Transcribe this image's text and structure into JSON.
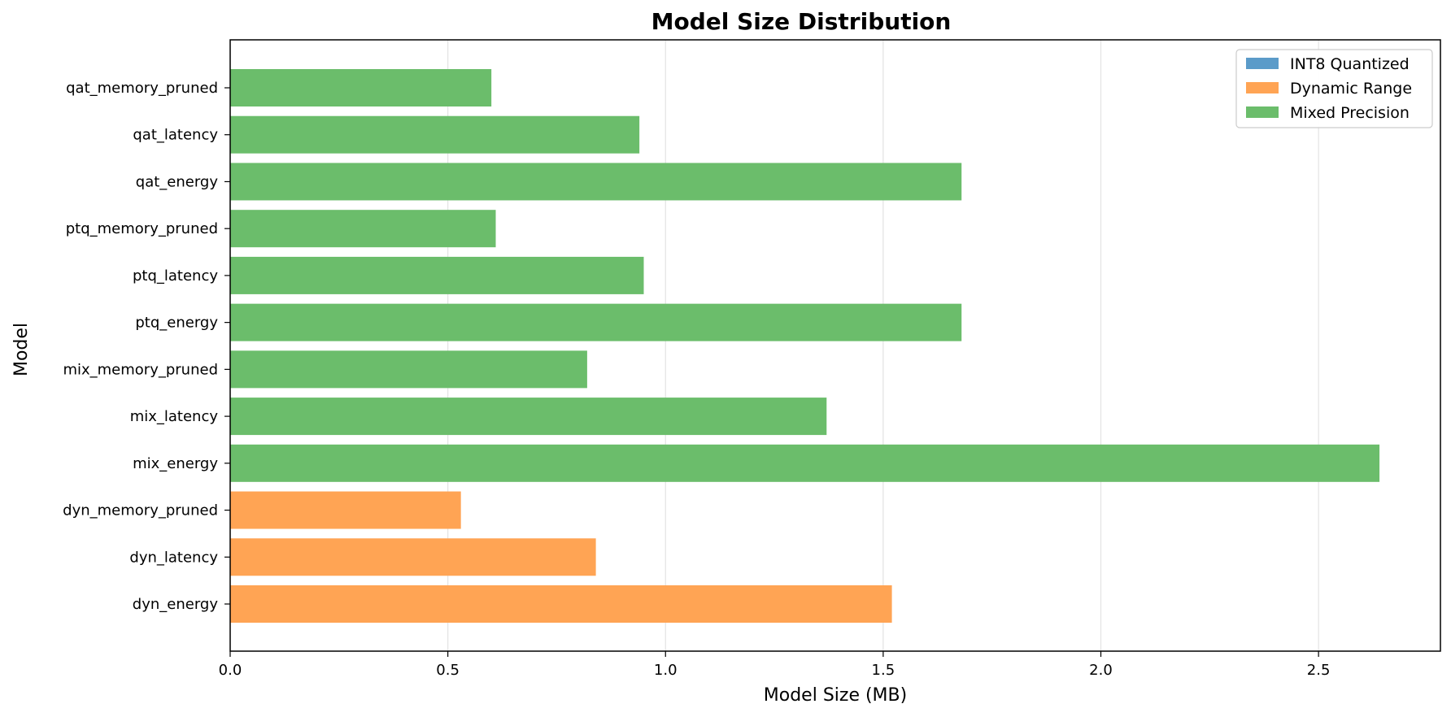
{
  "colors": {
    "int8": "#5b9bc9",
    "dynamic": "#ffa454",
    "mixed": "#6bbd6b",
    "grid": "#e3e3e3",
    "axis": "#000000"
  },
  "chart_data": {
    "type": "bar",
    "orientation": "horizontal",
    "title": "Model Size Distribution",
    "xlabel": "Model Size (MB)",
    "ylabel": "Model",
    "xlim": [
      0,
      2.78
    ],
    "xticks": [
      0.0,
      0.5,
      1.0,
      1.5,
      2.0,
      2.5
    ],
    "xtick_labels": [
      "0.0",
      "0.5",
      "1.0",
      "1.5",
      "2.0",
      "2.5"
    ],
    "grid": "x",
    "legend_position": "top-right",
    "legend": [
      {
        "label": "INT8 Quantized",
        "color_key": "int8"
      },
      {
        "label": "Dynamic Range",
        "color_key": "dynamic"
      },
      {
        "label": "Mixed Precision",
        "color_key": "mixed"
      }
    ],
    "categories": [
      "dyn_energy",
      "dyn_latency",
      "dyn_memory_pruned",
      "mix_energy",
      "mix_latency",
      "mix_memory_pruned",
      "ptq_energy",
      "ptq_latency",
      "ptq_memory_pruned",
      "qat_energy",
      "qat_latency",
      "qat_memory_pruned"
    ],
    "values": [
      1.52,
      0.84,
      0.53,
      2.64,
      1.37,
      0.82,
      1.68,
      0.95,
      0.61,
      1.68,
      0.94,
      0.6
    ],
    "bar_series": [
      "Dynamic Range",
      "Dynamic Range",
      "Dynamic Range",
      "Mixed Precision",
      "Mixed Precision",
      "Mixed Precision",
      "Mixed Precision",
      "Mixed Precision",
      "Mixed Precision",
      "Mixed Precision",
      "Mixed Precision",
      "Mixed Precision"
    ]
  }
}
